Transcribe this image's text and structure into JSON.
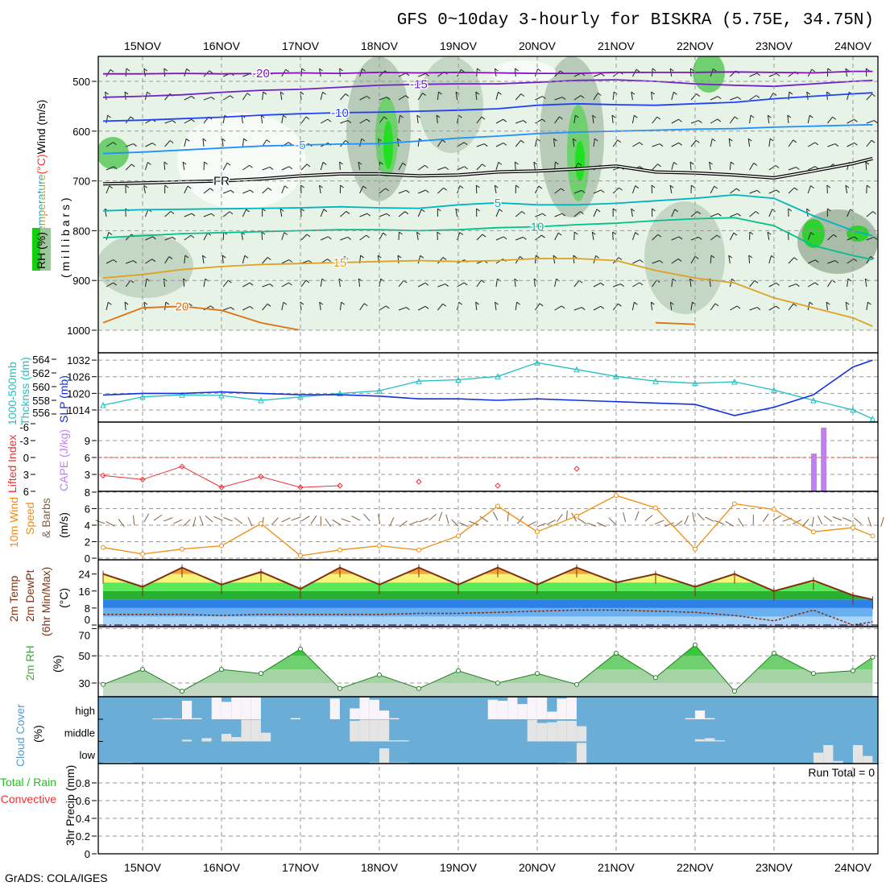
{
  "title": "GFS 0~10day 3-hourly for BISKRA (5.75E, 34.75N)",
  "footer": "GrADS: COLA/IGES",
  "dates": [
    "15NOV",
    "16NOV",
    "17NOV",
    "18NOV",
    "19NOV",
    "20NOV",
    "21NOV",
    "22NOV",
    "23NOV",
    "24NOV"
  ],
  "upper_air": {
    "label_wind": "Wind (m/s)",
    "label_temperature": "Temperature",
    "label_temp_unit": "(°C)",
    "label_rh": "RH (%)",
    "label_axis": "( m i l l i b a r s )",
    "y_ticks": [
      "500",
      "600",
      "700",
      "800",
      "900",
      "1000"
    ]
  },
  "thickness_slp": {
    "label_thickness_1": "1000-500mb",
    "label_thickness_2": "Thcknss (dm)",
    "label_slp": "SLP (mb)",
    "y_ticks_thickness": [
      "556",
      "558",
      "560",
      "562",
      "564"
    ],
    "y_ticks_slp": [
      "1014",
      "1020",
      "1026",
      "1032"
    ]
  },
  "li_cape": {
    "label_li": "Lifted Index",
    "label_cape": "CAPE (J/kg)",
    "y_ticks_li": [
      "-6",
      "-3",
      "0",
      "3",
      "6"
    ],
    "y_ticks_cape": [
      "3",
      "6",
      "9"
    ]
  },
  "wind10m": {
    "label_1": "10m Wind",
    "label_2": "Speed",
    "label_3": "& Barbs",
    "label_unit": "(m/s)",
    "y_ticks": [
      "0",
      "2",
      "4",
      "6",
      "8"
    ]
  },
  "temp2m": {
    "label_1": "2m Temp",
    "label_2": "2m DewPt",
    "label_3": "(6hr Min/Max)",
    "label_unit": "(°C)",
    "y_ticks": [
      "0",
      "8",
      "16",
      "24"
    ]
  },
  "rh2m": {
    "label_1": "2m RH",
    "label_unit": "(%)",
    "y_ticks": [
      "30",
      "50",
      "70"
    ]
  },
  "cloud": {
    "label_1": "Cloud Cover",
    "label_unit": "(%)",
    "levels": [
      "high",
      "middle",
      "low"
    ]
  },
  "precip": {
    "label_total": "Total / Rain",
    "label_convective": "Convective",
    "label_axis": "3hr Precip (mm)",
    "run_total": "Run Total = 0",
    "y_ticks": [
      "0",
      "0.2",
      "0.4",
      "0.6",
      "0.8"
    ]
  },
  "chart_data": {
    "type": "line",
    "start": "14NOV 12Z",
    "step_hours": 12,
    "isotherms_mb": [
      {
        "label": "-20",
        "color": "#8010c0",
        "values": [
          485,
          485,
          484,
          485,
          484,
          483,
          484,
          482,
          483,
          482,
          483,
          484,
          484,
          482,
          482,
          482,
          481,
          482,
          483,
          480,
          480
        ]
      },
      {
        "label": "-15",
        "color": "#7020c8",
        "values": [
          532,
          530,
          527,
          522,
          518,
          516,
          512,
          508,
          506,
          505,
          505,
          502,
          498,
          497,
          500,
          505,
          508,
          510,
          505,
          500,
          498
        ]
      },
      {
        "label": "-10",
        "color": "#2040ff",
        "values": [
          580,
          578,
          575,
          572,
          568,
          565,
          563,
          562,
          560,
          558,
          555,
          548,
          545,
          547,
          548,
          545,
          542,
          535,
          530,
          525,
          523
        ]
      },
      {
        "label": "-5",
        "color": "#1e90ff",
        "values": [
          645,
          642,
          638,
          634,
          630,
          628,
          626,
          625,
          620,
          614,
          610,
          605,
          602,
          600,
          598,
          596,
          595,
          592,
          590,
          588,
          587
        ]
      },
      {
        "label": "FR",
        "color": "#000000",
        "values": [
          706,
          704,
          702,
          700,
          696,
          690,
          686,
          686,
          690,
          688,
          682,
          680,
          676,
          670,
          682,
          684,
          688,
          694,
          680,
          665,
          655
        ]
      },
      {
        "label": "5",
        "color": "#00b4c0",
        "values": [
          760,
          758,
          757,
          756,
          755,
          754,
          752,
          754,
          755,
          748,
          744,
          748,
          748,
          745,
          740,
          735,
          728,
          735,
          770,
          800,
          810
        ]
      },
      {
        "label": "10",
        "color": "#00c08c",
        "values": [
          814,
          810,
          806,
          804,
          802,
          800,
          798,
          798,
          800,
          798,
          794,
          792,
          788,
          785,
          780,
          776,
          774,
          790,
          830,
          850,
          858
        ]
      },
      {
        "label": "15",
        "color": "#e0a020",
        "values": [
          895,
          888,
          878,
          872,
          868,
          866,
          864,
          862,
          860,
          862,
          860,
          856,
          856,
          860,
          880,
          895,
          905,
          935,
          955,
          975,
          992
        ]
      },
      {
        "label": "20",
        "color": "#e07010",
        "values": [
          985,
          955,
          952,
          960,
          985,
          1000,
          null,
          null,
          null,
          null,
          null,
          null,
          null,
          null,
          985,
          988,
          null,
          null,
          null,
          null,
          null
        ]
      }
    ],
    "thickness_dm": [
      557.3,
      558.5,
      558.8,
      558.7,
      558.0,
      558.5,
      559.0,
      559.4,
      560.8,
      561.0,
      561.5,
      563.5,
      562.5,
      561.5,
      560.8,
      560.5,
      560.7,
      559.5,
      558.0,
      556.6,
      555.3
    ],
    "slp_mb": [
      1019.4,
      1020,
      1020,
      1020.5,
      1020,
      1019.5,
      1019.5,
      1019,
      1018,
      1018,
      1017.5,
      1018,
      1017.5,
      1017,
      1016.5,
      1016,
      1012,
      1015,
      1019.5,
      1029.5,
      1032
    ],
    "lifted_index": [
      3.2,
      3.9,
      1.6,
      5.3,
      3.4,
      5.3,
      5.0,
      null,
      4.3,
      null,
      5.0,
      null,
      2.0,
      null,
      null,
      null,
      null,
      null,
      null,
      null,
      null
    ],
    "cape_bars": [
      {
        "hour": 216,
        "value": 6.7
      },
      {
        "hour": 219,
        "value": 11.3
      }
    ],
    "wind10m_ms": [
      1.3,
      0.5,
      1.1,
      1.5,
      4.2,
      0.3,
      1.0,
      1.5,
      1.0,
      2.7,
      6.3,
      3.2,
      5.1,
      7.6,
      6.1,
      1.1,
      6.6,
      5.9,
      3.2,
      3.7,
      2.7
    ],
    "temp2m_c": [
      24,
      18,
      27,
      19,
      25,
      17,
      27,
      19,
      27,
      19,
      27,
      19,
      27,
      20,
      24,
      18,
      24,
      16,
      21,
      14,
      12
    ],
    "dewpt2m_c": [
      5,
      5,
      5,
      4.5,
      5,
      5,
      5,
      5,
      5.5,
      5.5,
      6,
      6.5,
      7,
      7,
      6.5,
      6,
      4.5,
      2,
      7,
      0,
      1.5
    ],
    "rh2m_pct": [
      29,
      40,
      24,
      40,
      37,
      55,
      26,
      36,
      26,
      39,
      30,
      37,
      29,
      52,
      34,
      58,
      24,
      52,
      37,
      39,
      49
    ],
    "cloud_bars_pct": {
      "high": [
        [
          15,
          3
        ],
        [
          18,
          5
        ],
        [
          21,
          3
        ],
        [
          24,
          85
        ],
        [
          27,
          5
        ],
        [
          33,
          100
        ],
        [
          36,
          80
        ],
        [
          39,
          100
        ],
        [
          42,
          100
        ],
        [
          45,
          100
        ],
        [
          57,
          5
        ],
        [
          69,
          95
        ],
        [
          75,
          50
        ],
        [
          78,
          100
        ],
        [
          81,
          90
        ],
        [
          84,
          40
        ],
        [
          87,
          5
        ],
        [
          117,
          90
        ],
        [
          120,
          85
        ],
        [
          123,
          100
        ],
        [
          126,
          70
        ],
        [
          129,
          100
        ],
        [
          132,
          100
        ],
        [
          135,
          35
        ],
        [
          138,
          95
        ],
        [
          141,
          100
        ],
        [
          177,
          5
        ],
        [
          180,
          40
        ],
        [
          183,
          5
        ]
      ],
      "middle": [
        [
          24,
          8
        ],
        [
          30,
          15
        ],
        [
          36,
          35
        ],
        [
          39,
          20
        ],
        [
          42,
          100
        ],
        [
          45,
          100
        ],
        [
          48,
          40
        ],
        [
          75,
          95
        ],
        [
          78,
          100
        ],
        [
          81,
          100
        ],
        [
          84,
          100
        ],
        [
          87,
          5
        ],
        [
          90,
          5
        ],
        [
          129,
          100
        ],
        [
          132,
          85
        ],
        [
          135,
          88
        ],
        [
          138,
          95
        ],
        [
          141,
          95
        ],
        [
          144,
          70
        ],
        [
          180,
          10
        ],
        [
          183,
          15
        ],
        [
          186,
          5
        ]
      ],
      "low": [
        [
          0,
          5
        ],
        [
          3,
          5
        ],
        [
          6,
          5
        ],
        [
          81,
          5
        ],
        [
          84,
          70
        ],
        [
          87,
          5
        ],
        [
          90,
          5
        ],
        [
          138,
          3
        ],
        [
          141,
          5
        ],
        [
          144,
          95
        ],
        [
          216,
          50
        ],
        [
          219,
          85
        ],
        [
          222,
          12
        ],
        [
          228,
          85
        ],
        [
          231,
          35
        ],
        [
          234,
          5
        ]
      ]
    },
    "precip_mm": [],
    "colors": {
      "thickness": "#20c0c0",
      "slp": "#1030e0",
      "li": "#f03030",
      "cape": "#c080f0",
      "wind": "#f08c10",
      "barbs": "#806040",
      "temp": "#803010",
      "rh": "#208020"
    }
  }
}
